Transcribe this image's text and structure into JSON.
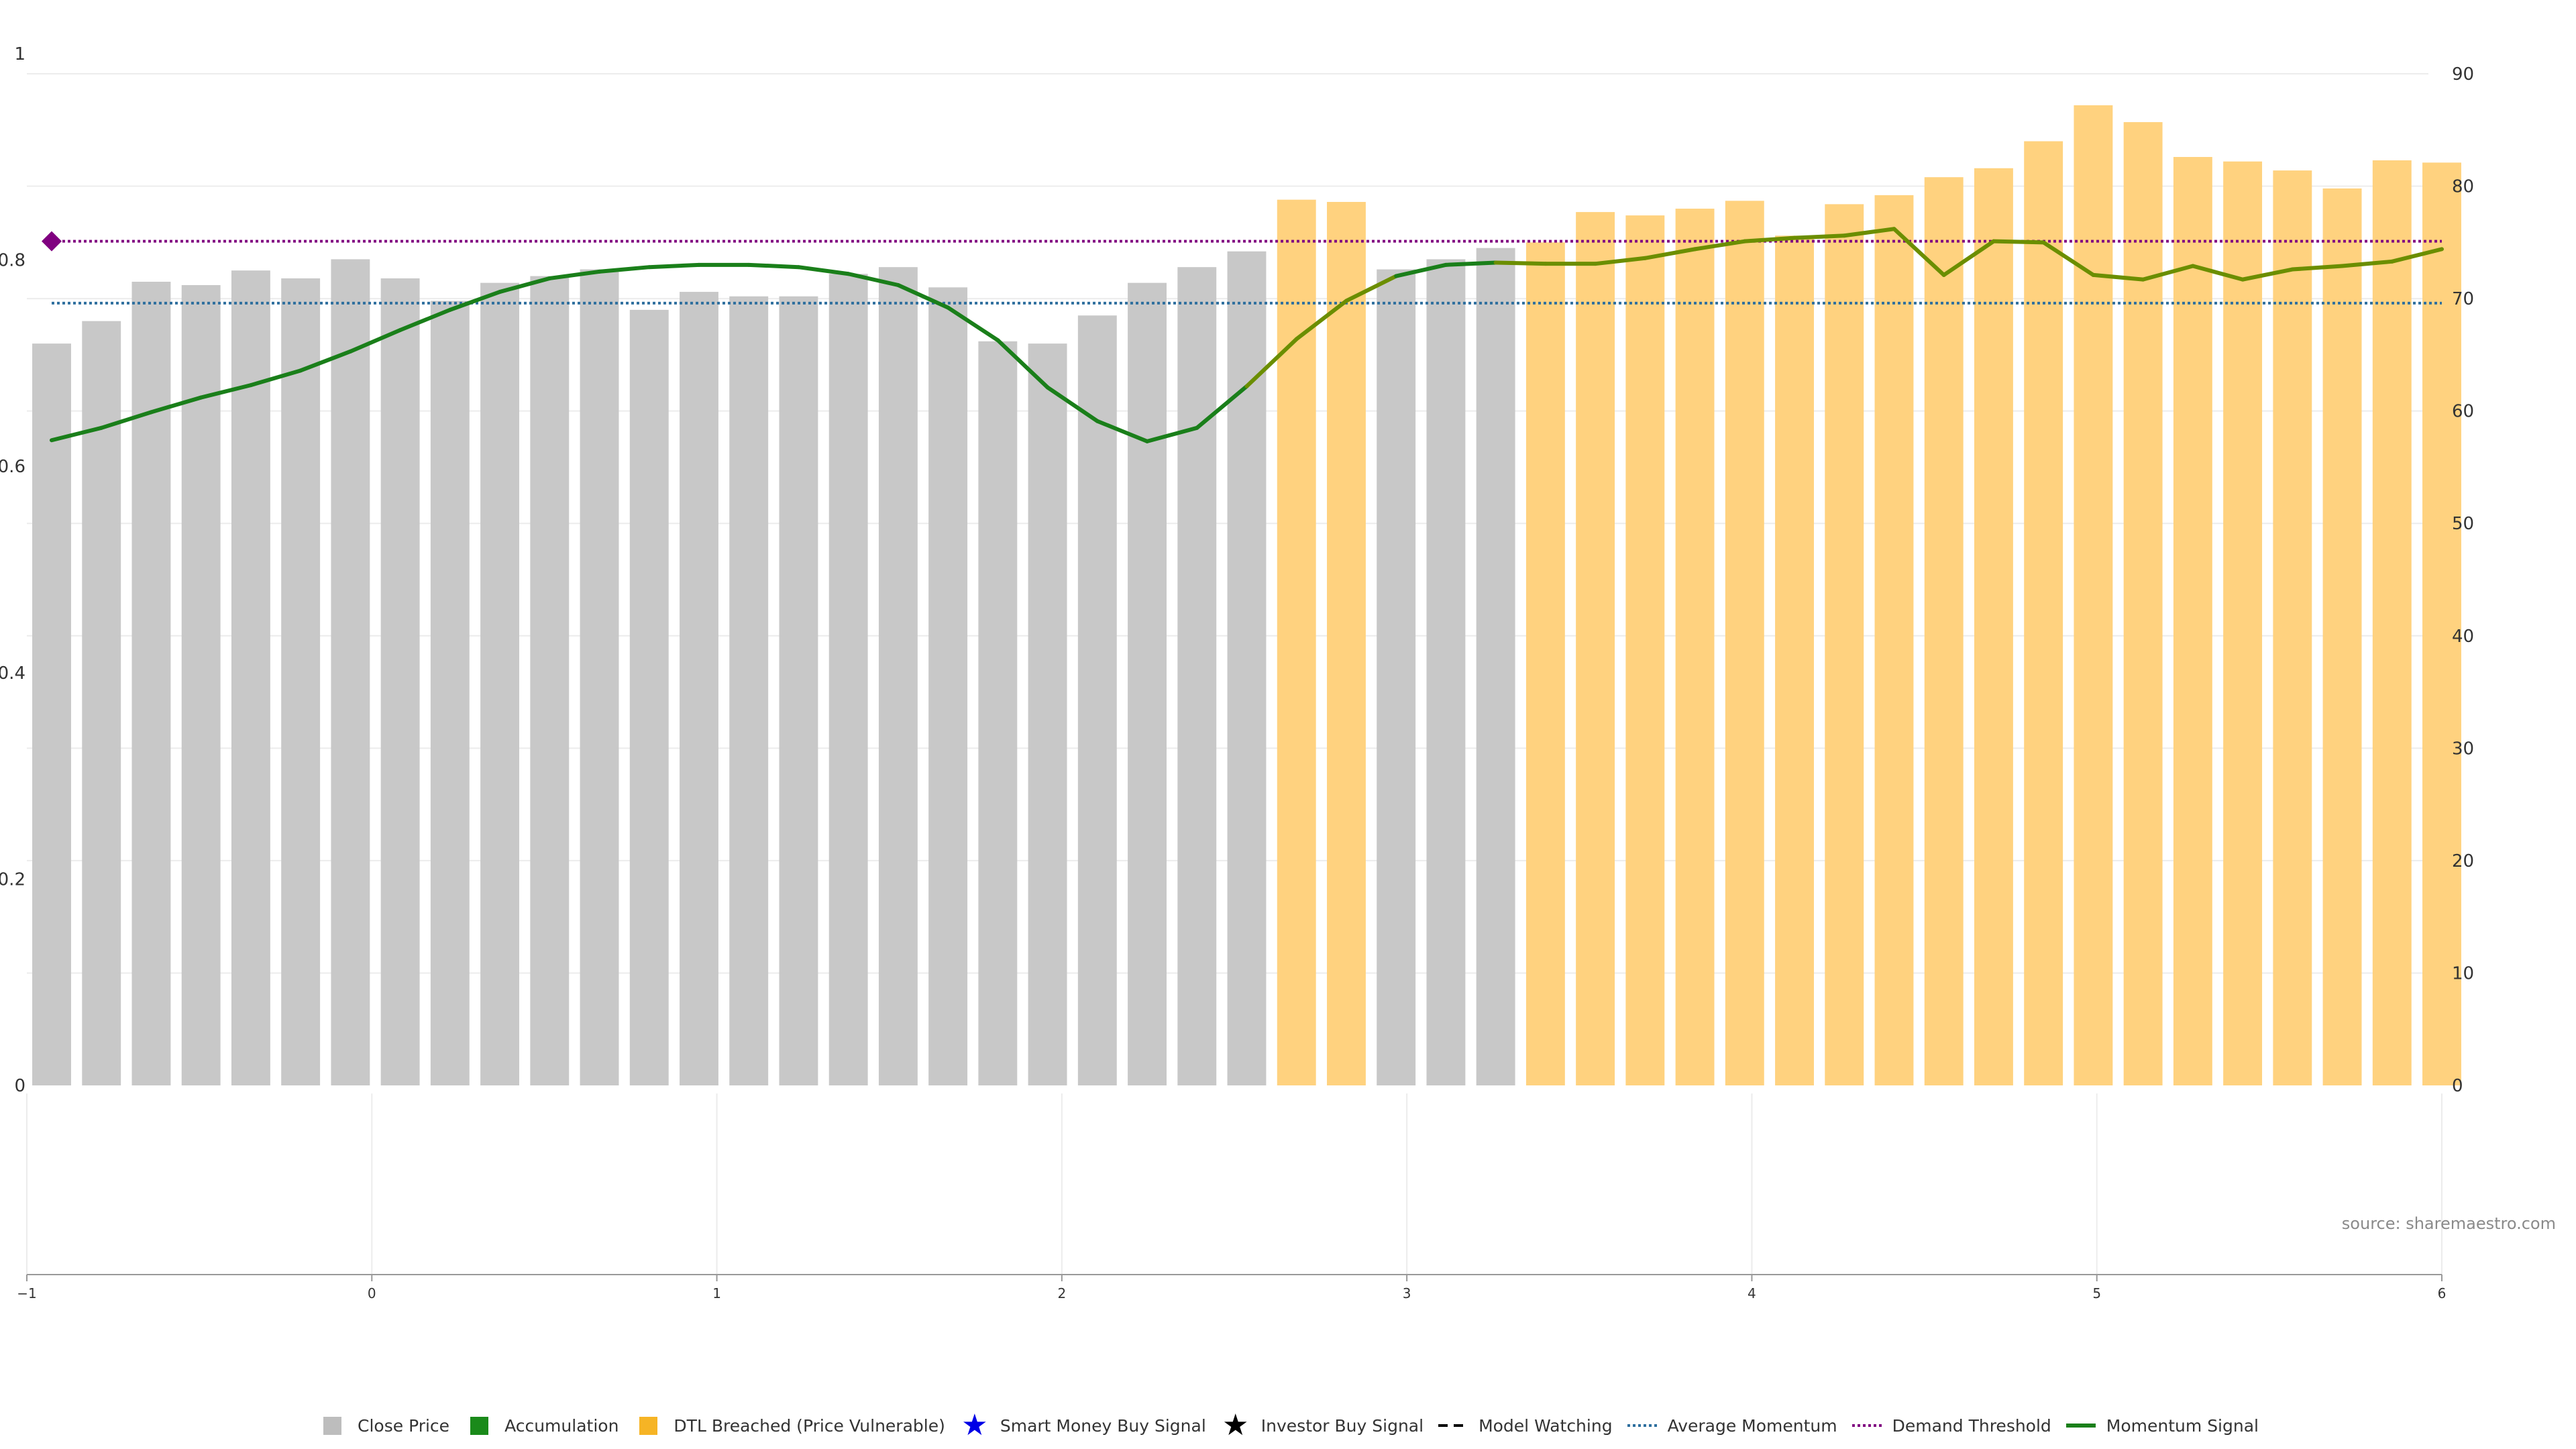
{
  "chart_data": {
    "type": "bar",
    "title": "",
    "xlabel": "",
    "ylabel": "",
    "left_axis": {
      "ticks": [
        0,
        0.2,
        0.4,
        0.6,
        0.8,
        1
      ],
      "tick_labels": [
        "0",
        "0.2",
        "0.4",
        "0.6",
        "0.8",
        "1"
      ],
      "ylim": [
        0,
        1
      ]
    },
    "right_axis": {
      "ticks": [
        0,
        10,
        20,
        30,
        40,
        50,
        60,
        70,
        80,
        90
      ],
      "tick_labels": [
        "0",
        "10",
        "20",
        "30",
        "40",
        "50",
        "60",
        "70",
        "80",
        "90"
      ],
      "ylim": [
        0,
        90
      ]
    },
    "x_axis": {
      "ticks": [
        -1,
        0,
        1,
        2,
        3,
        4,
        5,
        6
      ],
      "tick_labels": [
        "−1",
        "0",
        "1",
        "2",
        "3",
        "4",
        "5",
        "6"
      ],
      "xlim": [
        -1,
        6
      ]
    },
    "grid": true,
    "legend_position": "bottom",
    "colors": {
      "close": "#c8c8c8",
      "dtl": "#ffd27f",
      "momentum_green": "#1a7f1a",
      "momentum_olive": "#6b8e00",
      "avg_momentum": "#2e6f9e",
      "threshold": "#800080",
      "marker": "#800080"
    },
    "bars": {
      "values": [
        66,
        68,
        71.5,
        71.2,
        72.5,
        71.8,
        73.5,
        71.8,
        69.8,
        71.4,
        72,
        72.6,
        69,
        70.6,
        70.2,
        70.2,
        72.2,
        72.8,
        71,
        66.2,
        66,
        68.5,
        71.4,
        72.8,
        74.2,
        78.8,
        78.6,
        72.6,
        73.5,
        74.5,
        75,
        77.7,
        77.4,
        78,
        78.7,
        75.6,
        78.4,
        79.2,
        80.8,
        81.6,
        84,
        87.2,
        85.7,
        82.6,
        82.2,
        81.4,
        79.8,
        82.3,
        82.1
      ],
      "status": [
        "close",
        "close",
        "close",
        "close",
        "close",
        "close",
        "close",
        "close",
        "close",
        "close",
        "close",
        "close",
        "close",
        "close",
        "close",
        "close",
        "close",
        "close",
        "close",
        "close",
        "close",
        "close",
        "close",
        "close",
        "close",
        "dtl",
        "dtl",
        "close",
        "close",
        "close",
        "dtl",
        "dtl",
        "dtl",
        "dtl",
        "dtl",
        "dtl",
        "dtl",
        "dtl",
        "dtl",
        "dtl",
        "dtl",
        "dtl",
        "dtl",
        "dtl",
        "dtl",
        "dtl",
        "dtl",
        "dtl",
        "dtl"
      ]
    },
    "series": [
      {
        "name": "Momentum Signal",
        "axis": "right",
        "values": [
          57.4,
          58.5,
          59.9,
          61.2,
          62.3,
          63.6,
          65.3,
          67.2,
          69,
          70.6,
          71.8,
          72.4,
          72.8,
          73,
          73,
          72.8,
          72.2,
          71.2,
          69.2,
          66.3,
          62.1,
          59.1,
          57.3,
          58.5,
          62.2,
          66.4,
          69.8,
          72,
          73,
          73.2,
          73.1,
          73.1,
          73.6,
          74.4,
          75.1,
          75.4,
          75.6,
          76.2,
          72.1,
          75.1,
          75,
          72.1,
          71.7,
          72.9,
          71.7,
          72.6,
          72.9,
          73.3,
          74.4
        ]
      },
      {
        "name": "Average Momentum",
        "axis": "right",
        "value": 69.6
      },
      {
        "name": "Demand Threshold",
        "axis": "right",
        "value": 75.1
      }
    ],
    "marker": {
      "axis": "right",
      "index": 0,
      "value": 75.1
    },
    "lower_panel": {
      "values": []
    }
  },
  "source_label": "source: sharemaestro.com",
  "legend": [
    {
      "label": "Close Price",
      "icon": "gray-square",
      "color": "#bdbdbd"
    },
    {
      "label": "Accumulation",
      "icon": "green-square",
      "color": "#1a8a1a"
    },
    {
      "label": "DTL Breached (Price Vulnerable)",
      "icon": "orange-square",
      "color": "#f6b425"
    },
    {
      "label": "Smart Money Buy Signal",
      "icon": "blue-star",
      "color": "#0000e6"
    },
    {
      "label": "Investor Buy Signal",
      "icon": "black-star",
      "color": "#000000"
    },
    {
      "label": "Model Watching",
      "icon": "dashed-line",
      "color": "#000000"
    },
    {
      "label": "Average Momentum",
      "icon": "dotted-line",
      "color": "#2e6f9e"
    },
    {
      "label": "Demand Threshold",
      "icon": "dotted-line",
      "color": "#800080"
    },
    {
      "label": "Momentum Signal",
      "icon": "solid-line",
      "color": "#1a7f1a"
    }
  ]
}
